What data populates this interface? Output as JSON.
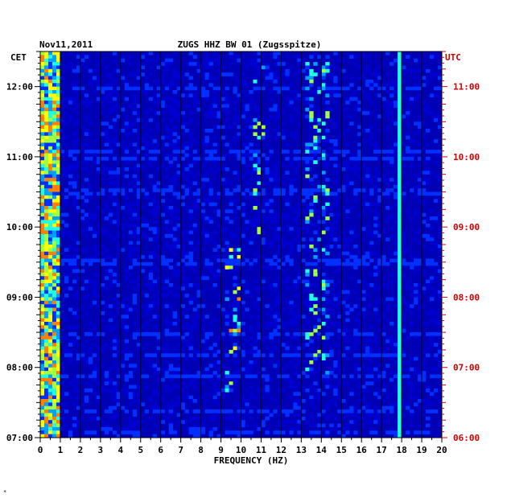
{
  "chart_data": {
    "type": "heatmap",
    "title_date": "Nov11,2011",
    "title_station": "ZUGS HHZ BW 01 (Zugsspitze)",
    "left_axis_label": "CET",
    "right_axis_label": "UTC",
    "xlabel": "FREQUENCY (HZ)",
    "x_ticks": [
      "0",
      "1",
      "2",
      "3",
      "4",
      "5",
      "6",
      "7",
      "8",
      "9",
      "10",
      "11",
      "12",
      "13",
      "14",
      "15",
      "16",
      "17",
      "18",
      "19",
      "20"
    ],
    "xlim": [
      0,
      20
    ],
    "left_ticks": [
      "12:00",
      "11:00",
      "10:00",
      "09:00",
      "08:00",
      "07:00"
    ],
    "right_ticks": [
      "11:00",
      "10:00",
      "09:00",
      "08:00",
      "07:00",
      "06:00"
    ],
    "time_range_cet": [
      "07:00",
      "12:30"
    ],
    "colormap": [
      "#00007a",
      "#0000d0",
      "#0030ff",
      "#00a0ff",
      "#20ffe0",
      "#a0ff40",
      "#ffff00",
      "#ff8000",
      "#d00000"
    ],
    "background_color": "#0000b4",
    "features": [
      {
        "freq": [
          0.0,
          1.0
        ],
        "time_cet": [
          "07:00",
          "12:30"
        ],
        "level": "high",
        "description": "persistent low-frequency noise"
      },
      {
        "freq": [
          9.2,
          9.9
        ],
        "time_cet": [
          "07:40",
          "09:45"
        ],
        "level": "high",
        "description": "bursts"
      },
      {
        "freq": [
          13.3,
          14.4
        ],
        "time_cet": [
          "07:55",
          "12:20"
        ],
        "level": "medium",
        "description": "bursts"
      },
      {
        "freq": [
          17.8,
          17.9
        ],
        "time_cet": [
          "07:00",
          "12:30"
        ],
        "level": "medium",
        "description": "narrow constant line"
      },
      {
        "freq": [
          10.6,
          11.2
        ],
        "time_cet": [
          "09:55",
          "12:20"
        ],
        "level": "medium",
        "description": "bursts"
      }
    ]
  },
  "footer_mark": "*"
}
